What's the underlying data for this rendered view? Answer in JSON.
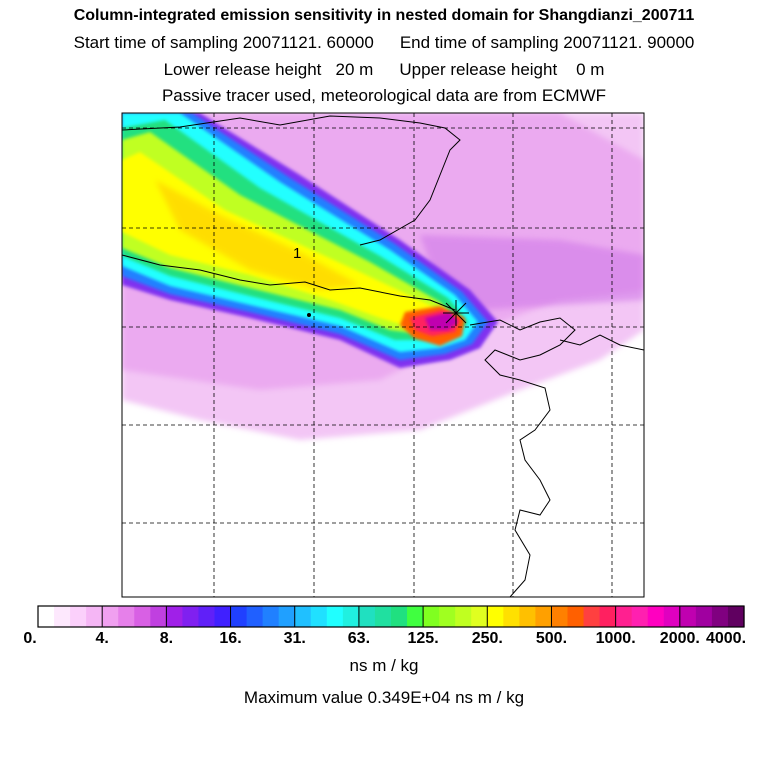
{
  "header": {
    "title": "Column-integrated emission sensitivity in nested domain for Shangdianzi_200711",
    "start_label": "Start time of sampling 20071121. 60000",
    "end_label": "End time of sampling 20071121. 90000",
    "lower_label": "Lower release height   20 m",
    "upper_label": "Upper release height    0 m",
    "note": "Passive tracer used, meteorological data are from ECMWF"
  },
  "map": {
    "marker_label": "1"
  },
  "colorbar": {
    "colors": [
      "#ffffff",
      "#fde8fd",
      "#fbd0fb",
      "#f5b6f5",
      "#f0a0f0",
      "#e680ea",
      "#d860e4",
      "#c040e0",
      "#a020e8",
      "#8020f0",
      "#6020f8",
      "#4020ff",
      "#2040ff",
      "#2060ff",
      "#2080ff",
      "#20a0ff",
      "#20c0ff",
      "#20e0ff",
      "#20ffff",
      "#20f0e0",
      "#20e0c0",
      "#20e0a0",
      "#20e080",
      "#40ff40",
      "#80ff20",
      "#a0ff20",
      "#c0ff20",
      "#e0ff20",
      "#ffff00",
      "#ffe000",
      "#ffc000",
      "#ffa000",
      "#ff8000",
      "#ff6000",
      "#ff4040",
      "#ff2060",
      "#ff2090",
      "#ff20b0",
      "#ff00c0",
      "#e000c0",
      "#c000b0",
      "#a000a0",
      "#800080",
      "#600060"
    ],
    "tick_labels": [
      "0.",
      "4.",
      "8.",
      "16.",
      "31.",
      "63.",
      "125.",
      "250.",
      "500.",
      "1000.",
      "2000.",
      "4000."
    ],
    "unit": "ns m / kg",
    "max_value_text": "Maximum value  0.349E+04 ns m / kg"
  }
}
